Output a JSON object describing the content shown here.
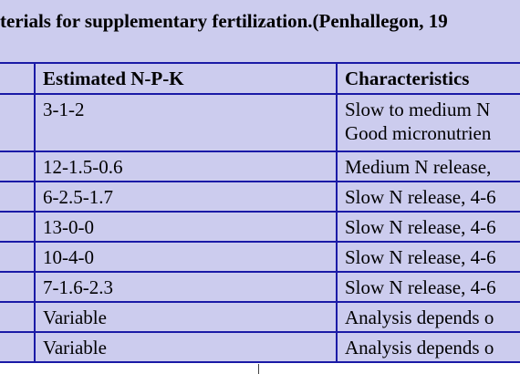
{
  "table": {
    "caption": "terials for supplementary fertilization.(Penhallegon, 19",
    "headers": [
      "",
      "Estimated N-P-K",
      "Characteristics"
    ],
    "rows": [
      {
        "c0": "",
        "npk": "3-1-2",
        "char_line1": "Slow to medium N",
        "char_line2": "Good micronutrien"
      },
      {
        "c0": "",
        "npk": "12-1.5-0.6",
        "char": "Medium N release,"
      },
      {
        "c0": "",
        "npk": "6-2.5-1.7",
        "char": "Slow N release, 4-6"
      },
      {
        "c0": "",
        "npk": "13-0-0",
        "char": "Slow N release, 4-6"
      },
      {
        "c0": "",
        "npk": "10-4-0",
        "char": "Slow N release, 4-6"
      },
      {
        "c0": "",
        "npk": "7-1.6-2.3",
        "char": "Slow N release, 4-6"
      },
      {
        "c0": "",
        "npk": "Variable",
        "char": "Analysis depends o"
      },
      {
        "c0": "",
        "npk": "Variable",
        "char": "Analysis depends o"
      }
    ]
  }
}
